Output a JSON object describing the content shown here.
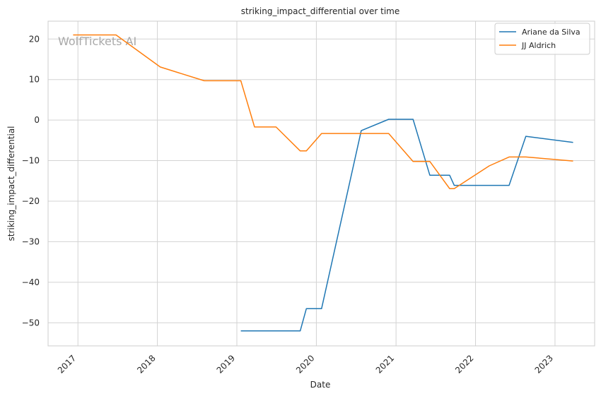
{
  "chart_data": {
    "type": "line",
    "title": "striking_impact_differential over time",
    "xlabel": "Date",
    "ylabel": "striking_impact_differential",
    "watermark": "WolfTickets AI",
    "x_ticks": [
      "2017",
      "2018",
      "2019",
      "2020",
      "2021",
      "2022",
      "2023"
    ],
    "y_ticks": [
      20,
      10,
      0,
      -10,
      -20,
      -30,
      -40,
      -50
    ],
    "xlim": [
      "2016-08-17",
      "2023-07-02"
    ],
    "ylim": [
      -55.7,
      24.4
    ],
    "grid": true,
    "legend_position": "top-right",
    "series": [
      {
        "name": "Ariane da Silva",
        "color": "#1f77b4",
        "points": [
          [
            "2019-01-19",
            -52.0
          ],
          [
            "2019-10-19",
            -52.0
          ],
          [
            "2019-11-16",
            -46.5
          ],
          [
            "2020-01-25",
            -46.5
          ],
          [
            "2020-07-25",
            -2.6
          ],
          [
            "2020-11-28",
            0.2
          ],
          [
            "2021-03-20",
            0.2
          ],
          [
            "2021-06-05",
            -13.6
          ],
          [
            "2021-09-04",
            -13.6
          ],
          [
            "2021-09-25",
            -16.1
          ],
          [
            "2022-06-04",
            -16.1
          ],
          [
            "2022-08-20",
            -4.0
          ],
          [
            "2023-03-25",
            -5.5
          ]
        ]
      },
      {
        "name": "JJ Aldrich",
        "color": "#ff7f0e",
        "points": [
          [
            "2016-12-10",
            21.0
          ],
          [
            "2017-06-25",
            21.0
          ],
          [
            "2018-01-14",
            13.1
          ],
          [
            "2018-08-04",
            9.7
          ],
          [
            "2019-01-19",
            9.7
          ],
          [
            "2019-03-23",
            -1.7
          ],
          [
            "2019-06-30",
            -1.7
          ],
          [
            "2019-10-19",
            -7.6
          ],
          [
            "2019-11-16",
            -7.6
          ],
          [
            "2020-01-25",
            -3.3
          ],
          [
            "2020-11-28",
            -3.3
          ],
          [
            "2021-03-20",
            -10.2
          ],
          [
            "2021-06-05",
            -10.2
          ],
          [
            "2021-09-04",
            -16.9
          ],
          [
            "2021-09-25",
            -16.9
          ],
          [
            "2022-03-05",
            -11.3
          ],
          [
            "2022-06-04",
            -9.1
          ],
          [
            "2022-08-20",
            -9.1
          ],
          [
            "2023-03-25",
            -10.1
          ]
        ]
      }
    ]
  }
}
